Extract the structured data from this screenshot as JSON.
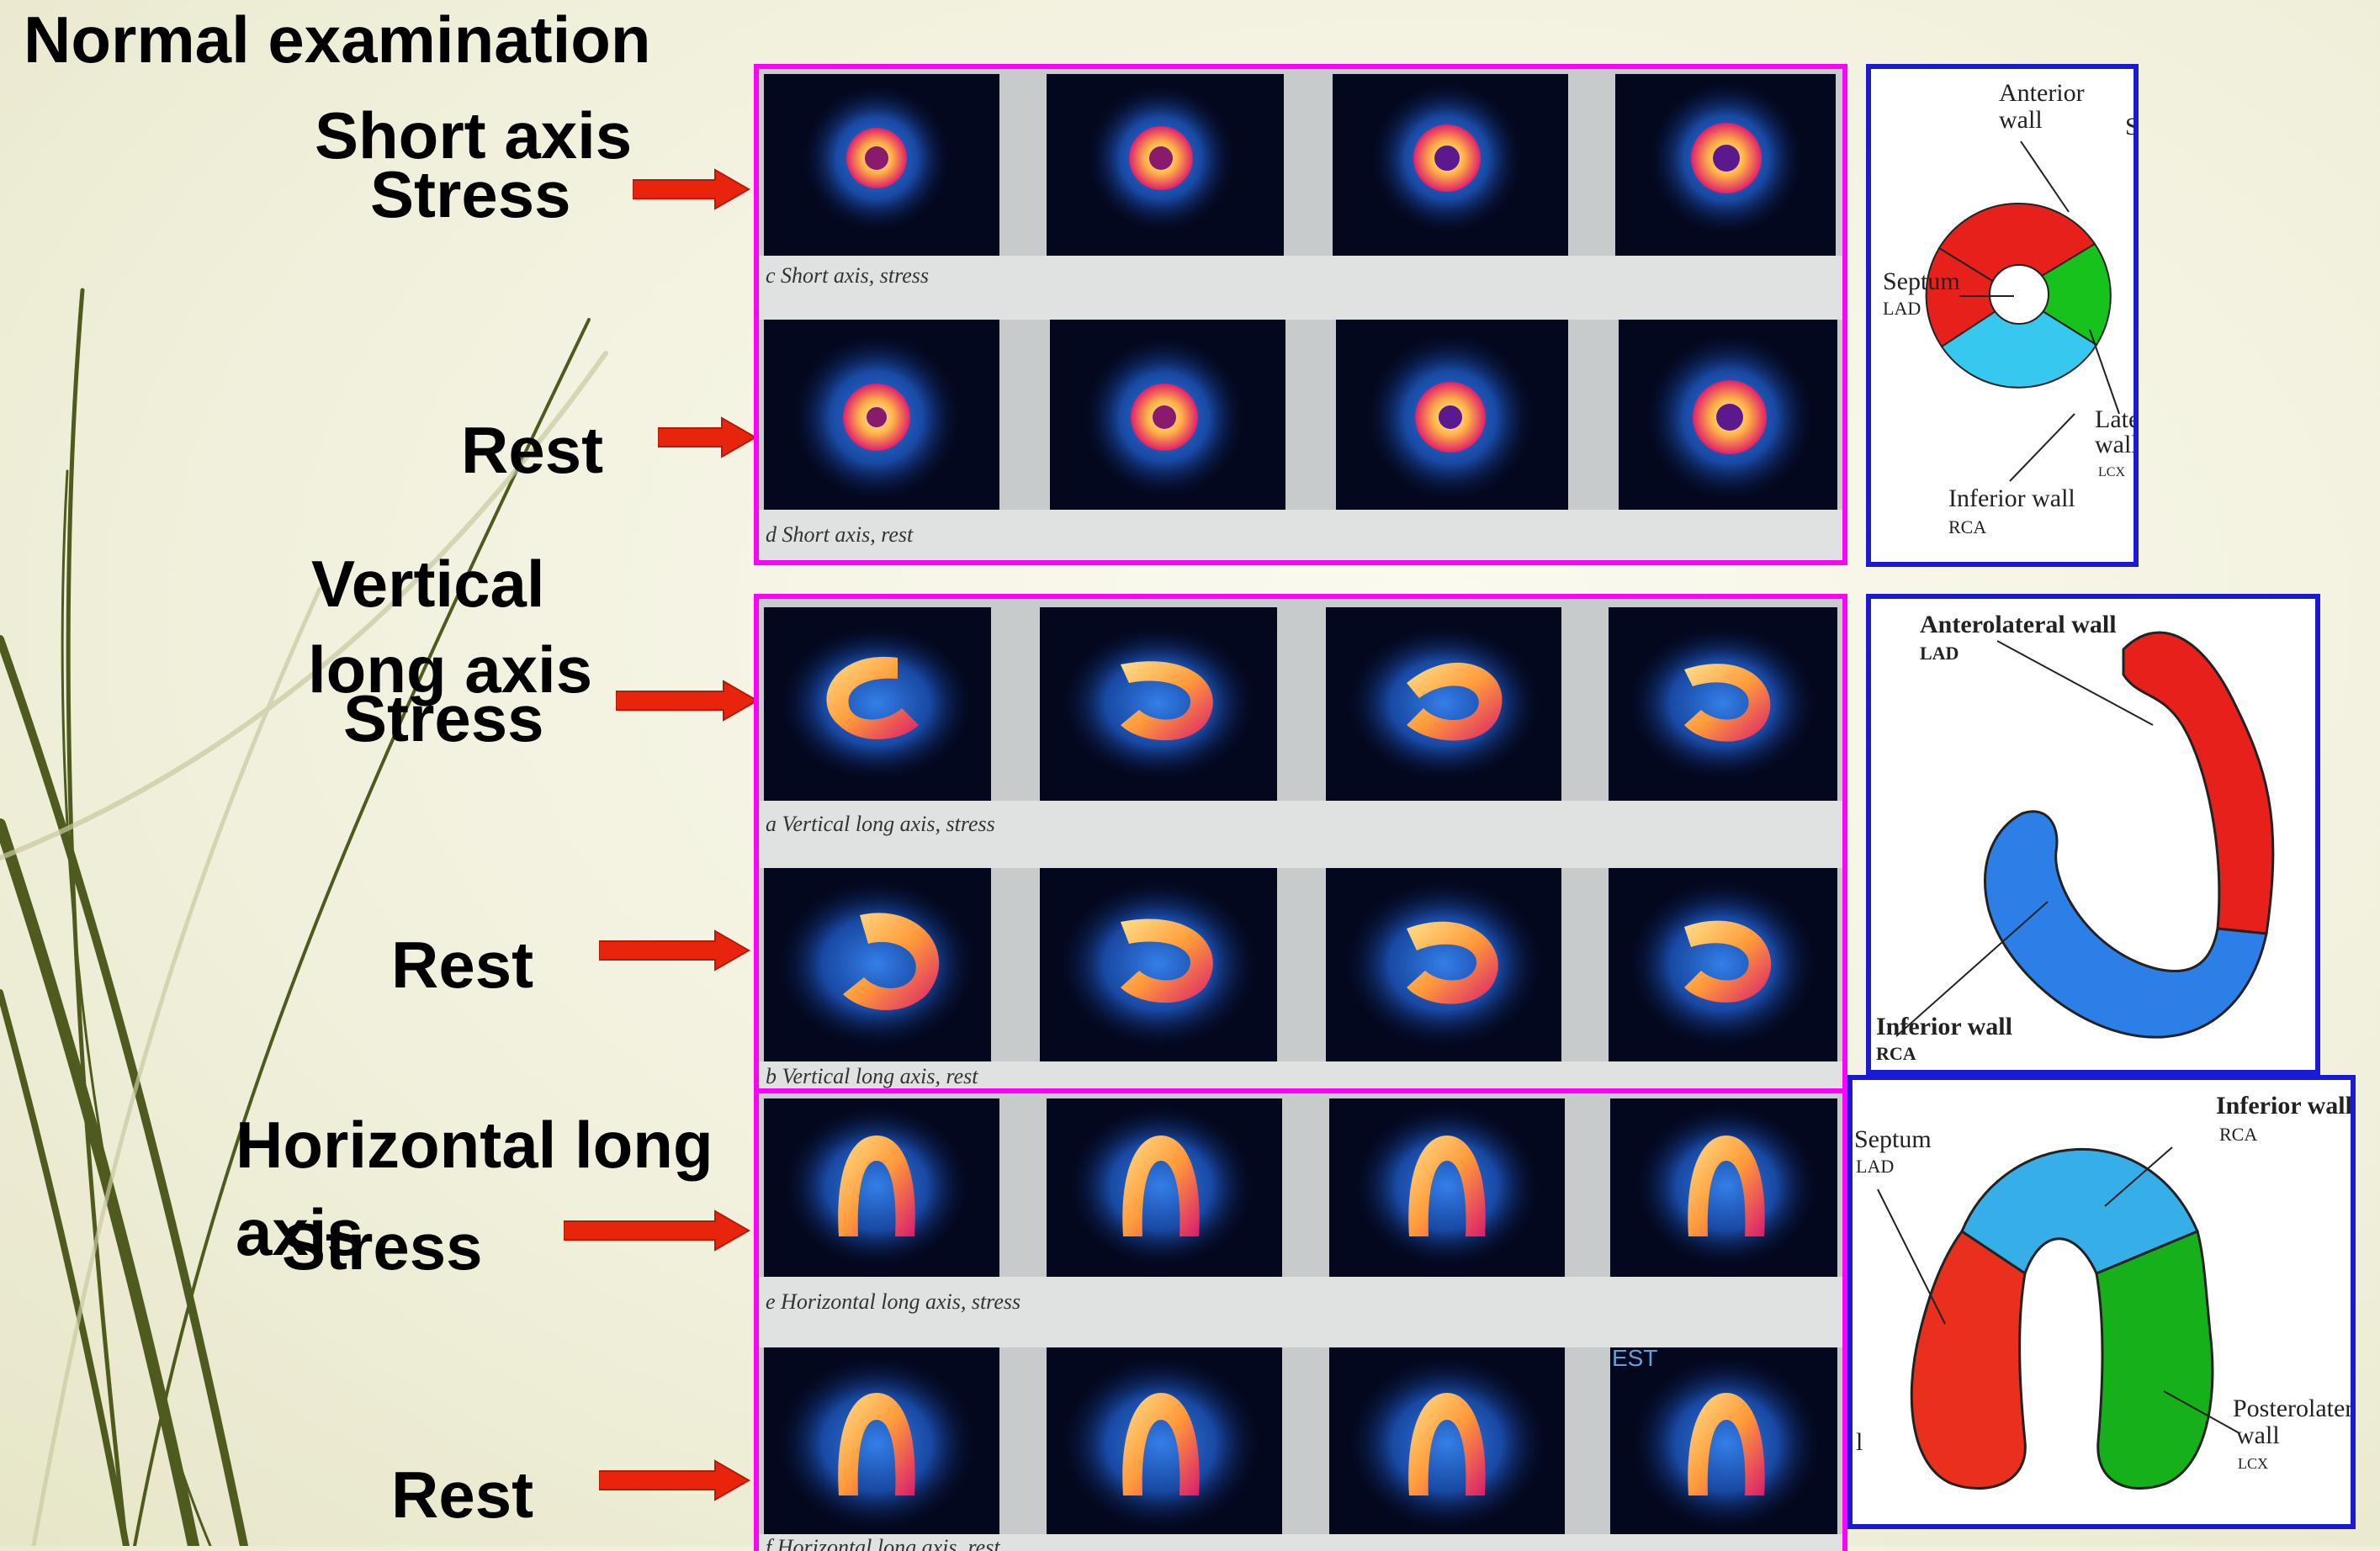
{
  "slide": {
    "title": "Normal examination",
    "labels": {
      "short_axis": "Short axis",
      "short_stress": "Stress",
      "short_rest": "Rest",
      "vertical_line1": "Vertical",
      "vertical_line2": "long axis",
      "vertical_stress": "Stress",
      "vertical_rest": "Rest",
      "horizontal_line1": "Horizontal long",
      "horizontal_line2": "axis",
      "horizontal_stress": "Stress",
      "horizontal_rest": "Rest"
    },
    "captions": {
      "short_stress": "c  Short axis, stress",
      "short_rest": "d  Short axis, rest",
      "vertical_stress": "a  Vertical long axis, stress",
      "vertical_rest": "b  Vertical long axis, rest",
      "horizontal_stress": "e  Horizontal long axis, stress",
      "horizontal_rest": "f  Horizontal long axis, rest",
      "horizontal_rest_overlay": "EST"
    },
    "diagrams": {
      "short": {
        "anterior_1": "Anterior",
        "anterior_2": "wall",
        "septum": "Septum",
        "septum_sub": "LAD",
        "lateral_1": "Latera",
        "lateral_2": "wall",
        "lateral_sub": "LCX",
        "inferior": "Inferior wall",
        "inferior_sub": "RCA",
        "edge_mark": "S"
      },
      "vertical": {
        "anterolateral": "Anterolateral wall",
        "anterolateral_sub": "LAD",
        "inferior": "Inferior wall",
        "inferior_sub": "RCA"
      },
      "horizontal": {
        "inferior": "Inferior wall",
        "inferior_sub": "RCA",
        "septum": "Septum",
        "septum_sub": "LAD",
        "posterolateral_1": "Posterolateral",
        "posterolateral_2": "wall",
        "posterolateral_sub": "LCX",
        "edge_mark": "l"
      }
    },
    "colors": {
      "panel_border": "#ff00ff",
      "diagram_border": "#1a1ad6",
      "arrow": "#e8240c",
      "lad_red": "#e8201c",
      "lcx_green": "#16c21b",
      "rca_blue": "#36c8ee"
    }
  }
}
